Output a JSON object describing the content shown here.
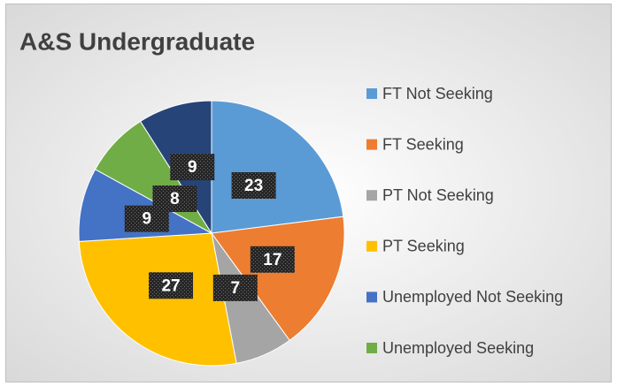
{
  "chart_data": {
    "type": "pie",
    "title": "A&S Undergraduate",
    "categories": [
      "FT Not Seeking",
      "FT Seeking",
      "PT Not Seeking",
      "PT Seeking",
      "Unemployed Not Seeking",
      "Unemployed Seeking",
      null
    ],
    "values": [
      23,
      17,
      7,
      27,
      9,
      8,
      9
    ],
    "colors": [
      "#5B9BD5",
      "#ED7D31",
      "#A5A5A5",
      "#FFC000",
      "#4472C4",
      "#70AD47",
      "#264478"
    ],
    "legend": "right"
  }
}
